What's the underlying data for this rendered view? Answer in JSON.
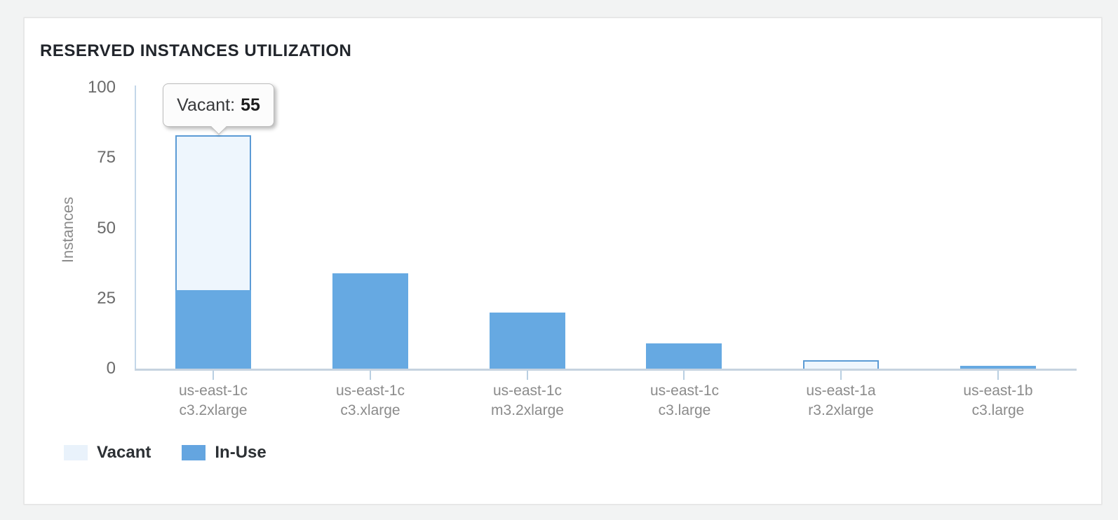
{
  "chart_data": {
    "type": "bar",
    "stacked": true,
    "title": "RESERVED INSTANCES UTILIZATION",
    "xlabel": "",
    "ylabel": "Instances",
    "ylim": [
      0,
      100
    ],
    "yticks": [
      0,
      25,
      50,
      75,
      100
    ],
    "grid": false,
    "categories": [
      {
        "line1": "us-east-1c",
        "line2": "c3.2xlarge"
      },
      {
        "line1": "us-east-1c",
        "line2": "c3.xlarge"
      },
      {
        "line1": "us-east-1c",
        "line2": "m3.2xlarge"
      },
      {
        "line1": "us-east-1c",
        "line2": "c3.large"
      },
      {
        "line1": "us-east-1a",
        "line2": "r3.2xlarge"
      },
      {
        "line1": "us-east-1b",
        "line2": "c3.large"
      }
    ],
    "series": [
      {
        "name": "In-Use",
        "color": "#66a9e2",
        "values": [
          28,
          34,
          20,
          9,
          0,
          1
        ]
      },
      {
        "name": "Vacant",
        "color": "#eef6fd",
        "border_color": "#5b9bd5",
        "values": [
          55,
          0,
          0,
          0,
          3,
          0
        ]
      }
    ],
    "legend": [
      {
        "label": "Vacant",
        "color": "#e9f2fb"
      },
      {
        "label": "In-Use",
        "color": "#64a5e0"
      }
    ],
    "legend_position": "bottom-left",
    "tooltip": {
      "series": "Vacant",
      "value": 55,
      "category_index": 0,
      "label_display": "Vacant:",
      "value_display": "55"
    },
    "colors": {
      "in_use": "#66a9e2",
      "vacant_fill": "#eef6fd",
      "vacant_border": "#5b9bd5",
      "axis_line": "#c3d7e9",
      "baseline": "#c6d3e0"
    }
  }
}
